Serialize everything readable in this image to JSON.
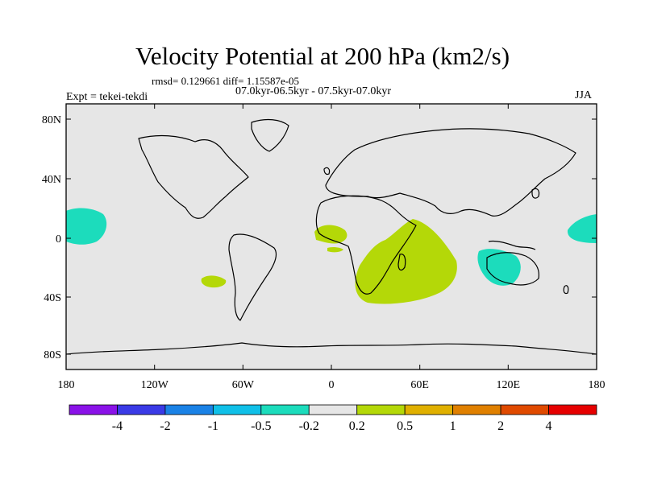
{
  "title": "Velocity Potential at 200 hPa (km2/s)",
  "stats": "rmsd= 0.129661 diff= 1.15587e-05",
  "experiment": "Expt = tekei-tekdi",
  "period": "07.0kyr-06.5kyr - 07.5kyr-07.0kyr",
  "season": "JJA",
  "map": {
    "lon_ticks": [
      "180",
      "120W",
      "60W",
      "0",
      "60E",
      "120E",
      "180"
    ],
    "lat_ticks": [
      "80N",
      "40N",
      "0",
      "40S",
      "80S"
    ],
    "background": "#e6e6e6",
    "pos_color": "#b4d808",
    "neg_color": "#1cdcbc"
  },
  "colorbar": {
    "colors": [
      "#8a12e8",
      "#3a3ae6",
      "#1a82e6",
      "#10c0e8",
      "#1cdcbc",
      "#e6e6e6",
      "#b4d808",
      "#e0b000",
      "#e08000",
      "#e04a00",
      "#e60000"
    ],
    "labels": [
      "-4",
      "-2",
      "-1",
      "-0.5",
      "-0.2",
      "0.2",
      "0.5",
      "1",
      "2",
      "4"
    ]
  }
}
